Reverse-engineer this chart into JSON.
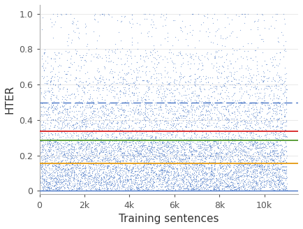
{
  "n_points": 4000,
  "n_dense_low": 8000,
  "n_sparse_high": 400,
  "x_max": 11000,
  "dot_color": "#4472C4",
  "dot_size": 0.8,
  "dot_alpha": 0.6,
  "line_orange_y": 0.155,
  "line_orange_color": "#E6A020",
  "line_orange_lw": 1.4,
  "line_green_y": 0.285,
  "line_green_color": "#5A9E3A",
  "line_green_lw": 1.4,
  "line_red_y": 0.335,
  "line_red_color": "#D93030",
  "line_red_lw": 1.4,
  "line_blue_dashed_y": 0.5,
  "line_blue_dashed_color": "#4472C4",
  "line_blue_dashed_lw": 1.0,
  "line_blue_bottom_y": 0.0,
  "line_blue_bottom_color": "#4472C4",
  "line_blue_bottom_lw": 1.0,
  "xlabel": "Training sentences",
  "ylabel": "HTER",
  "xlim": [
    0,
    11500
  ],
  "ylim": [
    -0.02,
    1.05
  ],
  "xticks": [
    0,
    2000,
    4000,
    6000,
    8000,
    10000
  ],
  "xtick_labels": [
    "0",
    "2k",
    "4k",
    "6k",
    "8k",
    "10k"
  ],
  "yticks": [
    0,
    0.2,
    0.4,
    0.6,
    0.8,
    1.0
  ],
  "seed": 42,
  "figsize": [
    4.34,
    3.28
  ],
  "dpi": 100
}
